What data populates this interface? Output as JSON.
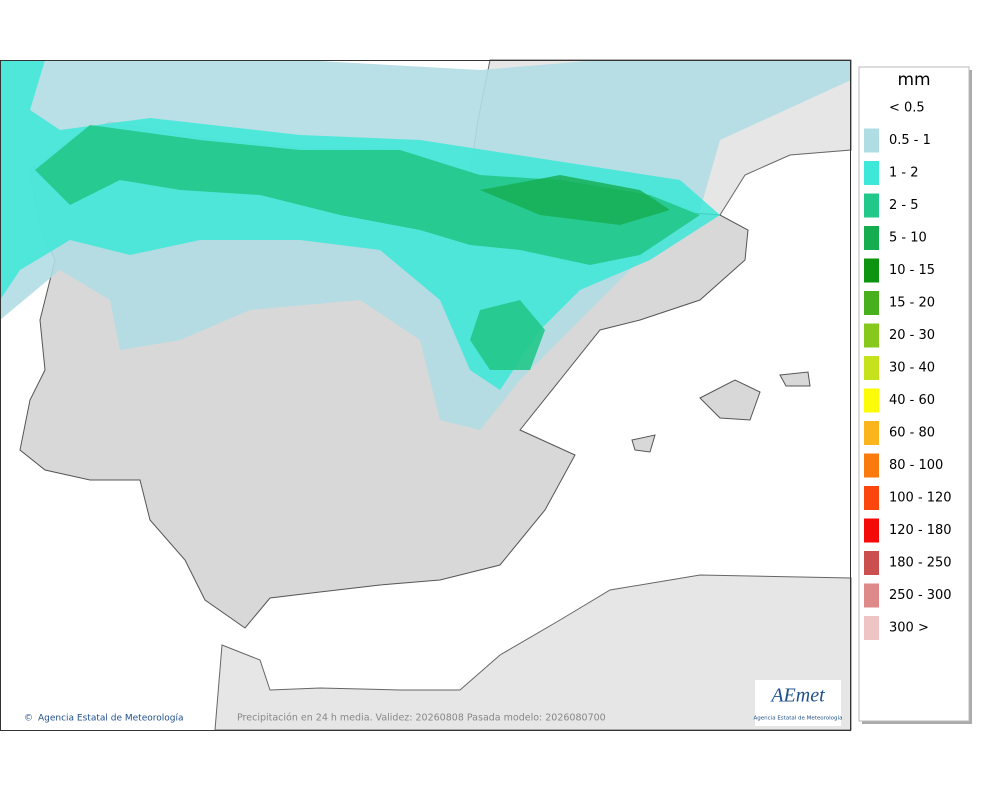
{
  "map": {
    "footer": {
      "credit": "Agencia Estatal de Meteorología",
      "caption": "Precipitación en 24 h media. Validez: 20260808 Pasada modelo: 2026080700"
    },
    "logo": {
      "name": "AEmet",
      "subtitle": "Agencia Estatal de Meteorología"
    }
  },
  "legend": {
    "unit": "mm",
    "items": [
      {
        "label": "< 0.5"
      },
      {
        "label": "0.5 - 1",
        "color": "#b0dde3"
      },
      {
        "label": "1 - 2",
        "color": "#3de8d8"
      },
      {
        "label": "2 - 5",
        "color": "#22c88a"
      },
      {
        "label": "5 - 10",
        "color": "#15ad4f"
      },
      {
        "label": "10 - 15",
        "color": "#0d9410"
      },
      {
        "label": "15 - 20",
        "color": "#47b01c"
      },
      {
        "label": "20 - 30",
        "color": "#86c81c"
      },
      {
        "label": "30 - 40",
        "color": "#c6e21c"
      },
      {
        "label": "40 - 60",
        "color": "#fbfb0a"
      },
      {
        "label": "60 - 80",
        "color": "#fbb41c"
      },
      {
        "label": "80 - 100",
        "color": "#fb7a0e"
      },
      {
        "label": "100 - 120",
        "color": "#fb460e"
      },
      {
        "label": "120 - 180",
        "color": "#f50a0a"
      },
      {
        "label": "180 - 250",
        "color": "#cc4f4f"
      },
      {
        "label": "250 - 300",
        "color": "#de8a8a"
      },
      {
        "label": "300 >",
        "color": "#efc4c4"
      }
    ]
  }
}
